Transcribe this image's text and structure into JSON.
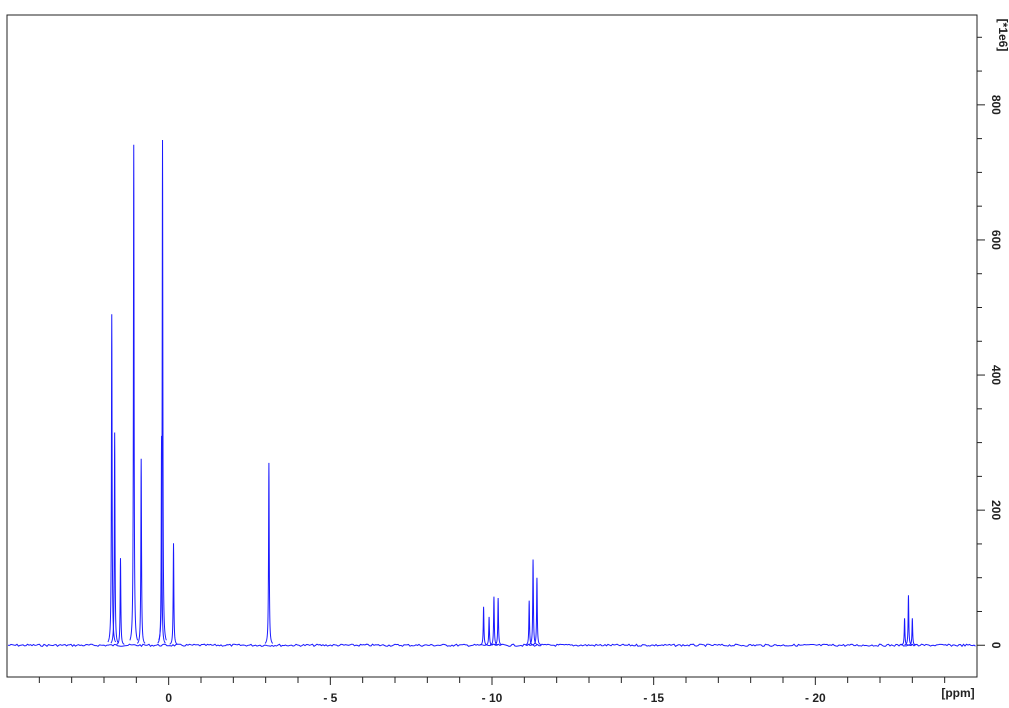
{
  "chart_data": {
    "type": "line",
    "title": "",
    "xlabel": "[ppm]",
    "ylabel": "[*1e6]",
    "xlim": [
      5,
      -25
    ],
    "ylim": [
      -47,
      933
    ],
    "x_reversed": true,
    "grid": false,
    "line_color": "#1a1aff",
    "x_ticks": [
      {
        "value": 0,
        "label": "0"
      },
      {
        "value": -5,
        "label": "- 5"
      },
      {
        "value": -10,
        "label": "- 10"
      },
      {
        "value": -15,
        "label": "- 15"
      },
      {
        "value": -20,
        "label": "- 20"
      }
    ],
    "y_ticks": [
      {
        "value": 0,
        "label": "0"
      },
      {
        "value": 200,
        "label": "200"
      },
      {
        "value": 400,
        "label": "400"
      },
      {
        "value": 600,
        "label": "600"
      },
      {
        "value": 800,
        "label": "800"
      }
    ],
    "peaks": [
      {
        "ppm": 1.76,
        "intensity": 490
      },
      {
        "ppm": 1.67,
        "intensity": 315
      },
      {
        "ppm": 1.49,
        "intensity": 129
      },
      {
        "ppm": 1.08,
        "intensity": 741
      },
      {
        "ppm": 0.85,
        "intensity": 276
      },
      {
        "ppm": 0.22,
        "intensity": 310
      },
      {
        "ppm": 0.19,
        "intensity": 748
      },
      {
        "ppm": -0.15,
        "intensity": 151
      },
      {
        "ppm": -3.1,
        "intensity": 270
      },
      {
        "ppm": -9.74,
        "intensity": 57
      },
      {
        "ppm": -9.91,
        "intensity": 42
      },
      {
        "ppm": -10.06,
        "intensity": 72
      },
      {
        "ppm": -10.19,
        "intensity": 70
      },
      {
        "ppm": -11.15,
        "intensity": 66
      },
      {
        "ppm": -11.27,
        "intensity": 127
      },
      {
        "ppm": -11.39,
        "intensity": 100
      },
      {
        "ppm": -22.76,
        "intensity": 40
      },
      {
        "ppm": -22.88,
        "intensity": 74
      },
      {
        "ppm": -23.0,
        "intensity": 40
      }
    ]
  }
}
